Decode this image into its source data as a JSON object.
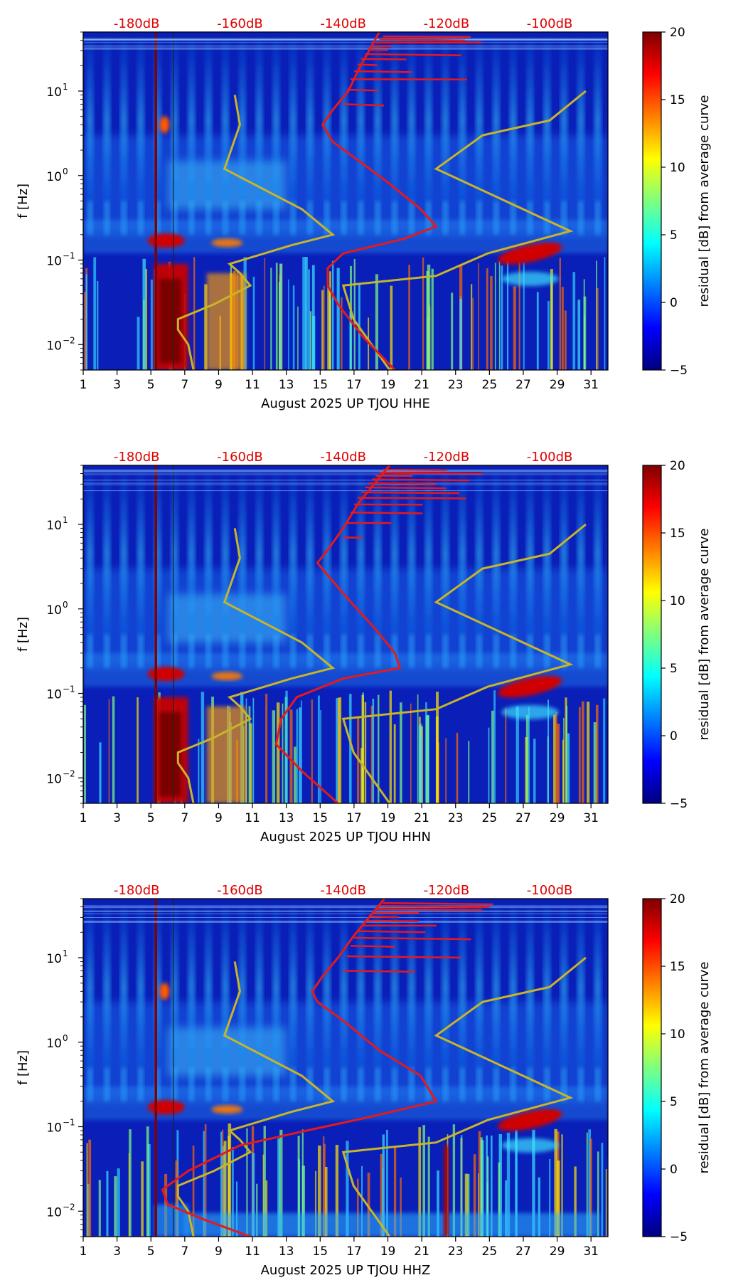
{
  "chart_data": [
    {
      "type": "heatmap",
      "panel": "HHE",
      "xlabel": "August 2025 UP TJOU  HHE",
      "ylabel": "f [Hz]",
      "colorbar_label": "residual [dB] from average curve",
      "colorbar_range": [
        -5,
        20
      ],
      "colorbar_ticks": [
        "20",
        "15",
        "10",
        "5",
        "0",
        "−5"
      ],
      "x_range": [
        1,
        32
      ],
      "x_ticks": [
        "1",
        "3",
        "5",
        "7",
        "9",
        "11",
        "13",
        "15",
        "17",
        "19",
        "21",
        "23",
        "25",
        "27",
        "29",
        "31"
      ],
      "y_range_hz": [
        0.005,
        50
      ],
      "y_ticks": [
        {
          "base": "10",
          "exp": "1"
        },
        {
          "base": "10",
          "exp": "0"
        },
        {
          "base": "10",
          "exp": "−1"
        },
        {
          "base": "10",
          "exp": "−2"
        }
      ],
      "db_scale": [
        "-180dB",
        "-160dB",
        "-140dB",
        "-120dB",
        "-100dB"
      ],
      "red_curve": {
        "desc": "average PSD (dB)",
        "points": [
          [
            -130,
            0.005
          ],
          [
            -136,
            0.012
          ],
          [
            -141,
            0.03
          ],
          [
            -143,
            0.05
          ],
          [
            -143,
            0.08
          ],
          [
            -140,
            0.12
          ],
          [
            -128,
            0.18
          ],
          [
            -122,
            0.25
          ],
          [
            -125,
            0.4
          ],
          [
            -131,
            0.8
          ],
          [
            -137,
            1.5
          ],
          [
            -142,
            2.5
          ],
          [
            -144,
            4
          ],
          [
            -142,
            6
          ],
          [
            -139,
            10
          ],
          [
            -137,
            18
          ],
          [
            -135,
            30
          ],
          [
            -133,
            50
          ]
        ]
      },
      "yellow_curve": {
        "desc": "noise model (dB)",
        "points": [
          [
            -169,
            0.005
          ],
          [
            -170,
            0.01
          ],
          [
            -172,
            0.015
          ],
          [
            -172,
            0.02
          ],
          [
            -165,
            0.03
          ],
          [
            -158,
            0.05
          ],
          [
            -160,
            0.07
          ],
          [
            -162,
            0.09
          ],
          [
            -150,
            0.15
          ],
          [
            -142,
            0.2
          ],
          [
            -148,
            0.4
          ],
          [
            -163,
            1.2
          ],
          [
            -160,
            4
          ],
          [
            -161,
            9
          ]
        ]
      },
      "yellow_curve_2": {
        "desc": "noise model (dB)",
        "points": [
          [
            -131,
            0.005
          ],
          [
            -138,
            0.02
          ],
          [
            -140,
            0.05
          ],
          [
            -122,
            0.065
          ],
          [
            -112,
            0.12
          ],
          [
            -96,
            0.22
          ],
          [
            -122,
            1.2
          ],
          [
            -113,
            3
          ],
          [
            -100,
            4.5
          ],
          [
            -93,
            10
          ]
        ]
      }
    },
    {
      "type": "heatmap",
      "panel": "HHN",
      "xlabel": "August 2025 UP TJOU  HHN",
      "ylabel": "f [Hz]",
      "colorbar_label": "residual [dB] from average curve",
      "colorbar_range": [
        -5,
        20
      ],
      "colorbar_ticks": [
        "20",
        "15",
        "10",
        "5",
        "0",
        "−5"
      ],
      "x_range": [
        1,
        32
      ],
      "x_ticks": [
        "1",
        "3",
        "5",
        "7",
        "9",
        "11",
        "13",
        "15",
        "17",
        "19",
        "21",
        "23",
        "25",
        "27",
        "29",
        "31"
      ],
      "y_range_hz": [
        0.005,
        50
      ],
      "y_ticks": [
        {
          "base": "10",
          "exp": "1"
        },
        {
          "base": "10",
          "exp": "0"
        },
        {
          "base": "10",
          "exp": "−1"
        },
        {
          "base": "10",
          "exp": "−2"
        }
      ],
      "db_scale": [
        "-180dB",
        "-160dB",
        "-140dB",
        "-120dB",
        "-100dB"
      ],
      "red_curve": {
        "desc": "average PSD (dB)",
        "points": [
          [
            -141,
            0.005
          ],
          [
            -148,
            0.012
          ],
          [
            -153,
            0.025
          ],
          [
            -152,
            0.05
          ],
          [
            -149,
            0.09
          ],
          [
            -140,
            0.15
          ],
          [
            -129,
            0.2
          ],
          [
            -130,
            0.3
          ],
          [
            -134,
            0.6
          ],
          [
            -139,
            1.3
          ],
          [
            -143,
            2.5
          ],
          [
            -145,
            3.5
          ],
          [
            -143,
            5
          ],
          [
            -140,
            9
          ],
          [
            -137,
            18
          ],
          [
            -134,
            30
          ],
          [
            -131,
            50
          ]
        ]
      },
      "yellow_curve": {
        "desc": "noise model (dB)",
        "points": [
          [
            -169,
            0.005
          ],
          [
            -170,
            0.01
          ],
          [
            -172,
            0.015
          ],
          [
            -172,
            0.02
          ],
          [
            -165,
            0.03
          ],
          [
            -158,
            0.05
          ],
          [
            -160,
            0.07
          ],
          [
            -162,
            0.09
          ],
          [
            -150,
            0.15
          ],
          [
            -142,
            0.2
          ],
          [
            -148,
            0.4
          ],
          [
            -163,
            1.2
          ],
          [
            -160,
            4
          ],
          [
            -161,
            9
          ]
        ]
      },
      "yellow_curve_2": {
        "desc": "noise model (dB)",
        "points": [
          [
            -131,
            0.005
          ],
          [
            -138,
            0.02
          ],
          [
            -140,
            0.05
          ],
          [
            -122,
            0.065
          ],
          [
            -112,
            0.12
          ],
          [
            -96,
            0.22
          ],
          [
            -122,
            1.2
          ],
          [
            -113,
            3
          ],
          [
            -100,
            4.5
          ],
          [
            -93,
            10
          ]
        ]
      }
    },
    {
      "type": "heatmap",
      "panel": "HHZ",
      "xlabel": "August 2025 UP TJOU  HHZ",
      "ylabel": "f [Hz]",
      "colorbar_label": "residual [dB] from average curve",
      "colorbar_range": [
        -5,
        20
      ],
      "colorbar_ticks": [
        "20",
        "15",
        "10",
        "5",
        "0",
        "−5"
      ],
      "x_range": [
        1,
        32
      ],
      "x_ticks": [
        "1",
        "3",
        "5",
        "7",
        "9",
        "11",
        "13",
        "15",
        "17",
        "19",
        "21",
        "23",
        "25",
        "27",
        "29",
        "31"
      ],
      "y_range_hz": [
        0.005,
        50
      ],
      "y_ticks": [
        {
          "base": "10",
          "exp": "1"
        },
        {
          "base": "10",
          "exp": "0"
        },
        {
          "base": "10",
          "exp": "−1"
        },
        {
          "base": "10",
          "exp": "−2"
        }
      ],
      "db_scale": [
        "-180dB",
        "-160dB",
        "-140dB",
        "-120dB",
        "-100dB"
      ],
      "red_curve": {
        "desc": "average PSD (dB)",
        "points": [
          [
            -158,
            0.005
          ],
          [
            -167,
            0.008
          ],
          [
            -174,
            0.012
          ],
          [
            -175,
            0.018
          ],
          [
            -170,
            0.03
          ],
          [
            -160,
            0.06
          ],
          [
            -147,
            0.09
          ],
          [
            -135,
            0.13
          ],
          [
            -122,
            0.2
          ],
          [
            -125,
            0.4
          ],
          [
            -133,
            0.8
          ],
          [
            -140,
            1.8
          ],
          [
            -145,
            3
          ],
          [
            -146,
            4
          ],
          [
            -144,
            6
          ],
          [
            -141,
            10
          ],
          [
            -138,
            18
          ],
          [
            -135,
            30
          ],
          [
            -132,
            50
          ]
        ]
      },
      "yellow_curve": {
        "desc": "noise model (dB)",
        "points": [
          [
            -169,
            0.005
          ],
          [
            -170,
            0.01
          ],
          [
            -172,
            0.015
          ],
          [
            -172,
            0.02
          ],
          [
            -165,
            0.03
          ],
          [
            -158,
            0.05
          ],
          [
            -160,
            0.07
          ],
          [
            -162,
            0.09
          ],
          [
            -150,
            0.15
          ],
          [
            -142,
            0.2
          ],
          [
            -148,
            0.4
          ],
          [
            -163,
            1.2
          ],
          [
            -160,
            4
          ],
          [
            -161,
            9
          ]
        ]
      },
      "yellow_curve_2": {
        "desc": "noise model (dB)",
        "points": [
          [
            -131,
            0.005
          ],
          [
            -138,
            0.02
          ],
          [
            -140,
            0.05
          ],
          [
            -122,
            0.065
          ],
          [
            -112,
            0.12
          ],
          [
            -96,
            0.22
          ],
          [
            -122,
            1.2
          ],
          [
            -113,
            3
          ],
          [
            -100,
            4.5
          ],
          [
            -93,
            10
          ]
        ]
      }
    }
  ],
  "colors": {
    "red_curve": "#e41a1c",
    "yellow_curve": "#c8b42a",
    "db_text": "#e00000"
  }
}
